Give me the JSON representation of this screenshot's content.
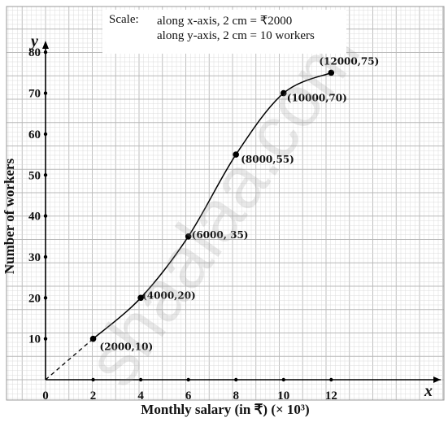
{
  "scale": {
    "label": "Scale:",
    "x_text": "along x-axis, 2 cm = ₹2000",
    "y_text": "along y-axis, 2 cm = 10 workers"
  },
  "watermark": "shaalaa.com",
  "chart_data": {
    "type": "line",
    "xlabel": "Monthly salary (in ₹) (× 10³)",
    "ylabel": "Number of workers",
    "x_axis_letter": "x",
    "y_axis_letter": "y",
    "xlim": [
      0,
      16.6
    ],
    "ylim": [
      0,
      86
    ],
    "x_ticks": [
      0,
      2,
      4,
      6,
      8,
      10,
      12
    ],
    "y_ticks": [
      10,
      20,
      30,
      40,
      50,
      60,
      70,
      80
    ],
    "grid": true,
    "points": [
      {
        "x": 2,
        "y": 10,
        "label": "(2000,10)"
      },
      {
        "x": 4,
        "y": 20,
        "label": "(4000,20)"
      },
      {
        "x": 6,
        "y": 35,
        "label": "(6000, 35)"
      },
      {
        "x": 8,
        "y": 55,
        "label": "(8000,55)"
      },
      {
        "x": 10,
        "y": 70,
        "label": "(10000,70)"
      },
      {
        "x": 12,
        "y": 75,
        "label": "(12000,75)"
      }
    ],
    "dashed_extension": {
      "from": [
        0,
        0
      ],
      "to": [
        2,
        10
      ]
    },
    "colors": {
      "grid_minor": "#dcdcdc",
      "grid_major": "#b8b8b8",
      "line": "#000000"
    }
  }
}
